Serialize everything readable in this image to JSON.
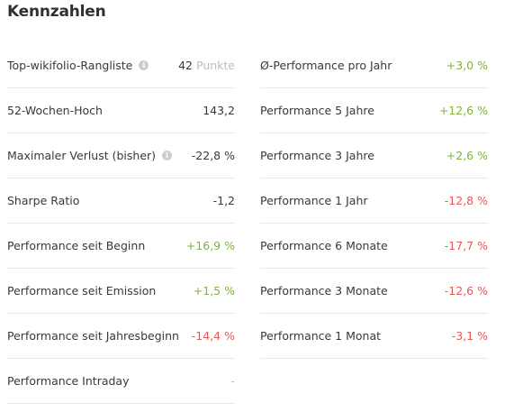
{
  "title": "Kennzahlen",
  "colors": {
    "positive": "#7fb33a",
    "negative": "#e35a57",
    "muted": "#b9bec3"
  },
  "left": [
    {
      "label": "Top-wikifolio-Rangliste",
      "info": true,
      "value": "42",
      "unit": "Punkte",
      "tone": "neutral"
    },
    {
      "label": "52-Wochen-Hoch",
      "info": false,
      "value": "143,2",
      "tone": "neutral"
    },
    {
      "label": "Maximaler Verlust (bisher)",
      "info": true,
      "value": "-22,8 %",
      "tone": "neutral"
    },
    {
      "label": "Sharpe Ratio",
      "info": false,
      "value": "-1,2",
      "tone": "neutral"
    },
    {
      "label": "Performance seit Beginn",
      "info": false,
      "value": "+16,9 %",
      "tone": "pos"
    },
    {
      "label": "Performance seit Emission",
      "info": false,
      "value": "+1,5 %",
      "tone": "pos"
    },
    {
      "label": "Performance seit Jahresbeginn",
      "info": false,
      "value": "-14,4 %",
      "tone": "neg"
    },
    {
      "label": "Performance Intraday",
      "info": false,
      "value": "-",
      "tone": "muted"
    }
  ],
  "right": [
    {
      "label": "Ø-Performance pro Jahr",
      "value": "+3,0 %",
      "tone": "pos"
    },
    {
      "label": "Performance 5 Jahre",
      "value": "+12,6 %",
      "tone": "pos"
    },
    {
      "label": "Performance 3 Jahre",
      "value": "+2,6 %",
      "tone": "pos"
    },
    {
      "label": "Performance 1 Jahr",
      "value": "-12,8 %",
      "tone": "neg"
    },
    {
      "label": "Performance 6 Monate",
      "value": "-17,7 %",
      "tone": "neg"
    },
    {
      "label": "Performance 3 Monate",
      "value": "-12,6 %",
      "tone": "neg"
    },
    {
      "label": "Performance 1 Monat",
      "value": "-3,1 %",
      "tone": "neg"
    }
  ]
}
